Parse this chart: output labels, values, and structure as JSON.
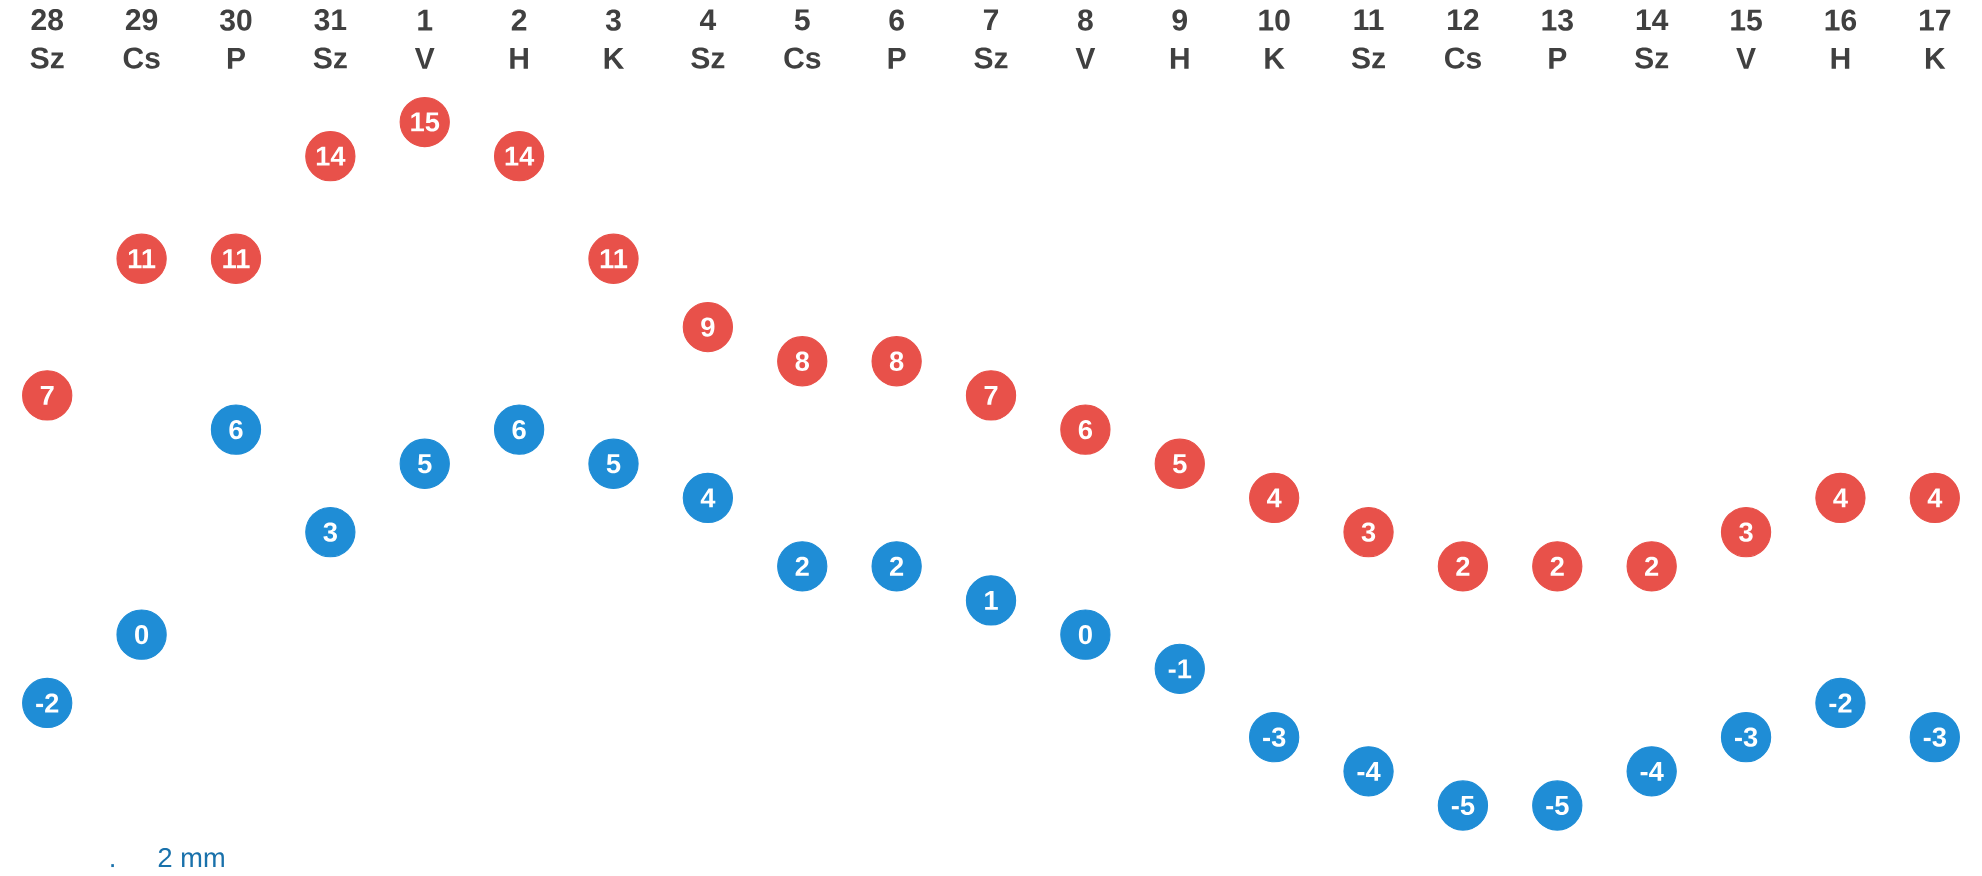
{
  "chart_data": {
    "type": "scatter",
    "categories": [
      "28 Sz",
      "29 Cs",
      "30 P",
      "31 Sz",
      "1 V",
      "2 H",
      "3 K",
      "4 Sz",
      "5 Cs",
      "6 P",
      "7 Sz",
      "8 V",
      "9 H",
      "10 K",
      "11 Sz",
      "12 Cs",
      "13 P",
      "14 Sz",
      "15 V",
      "16 H",
      "17 K"
    ],
    "series": [
      {
        "color": "#e8514a",
        "values": [
          7,
          11,
          11,
          14,
          15,
          14,
          11,
          9,
          8,
          8,
          7,
          6,
          5,
          4,
          3,
          2,
          2,
          2,
          3,
          4,
          4
        ]
      },
      {
        "color": "#1f8dd6",
        "values": [
          -2,
          0,
          6,
          3,
          5,
          6,
          5,
          4,
          2,
          2,
          1,
          0,
          -1,
          -3,
          -4,
          -5,
          -5,
          -4,
          -3,
          -2,
          -3
        ]
      }
    ],
    "marker": "circle",
    "data_labels": true,
    "annotations": [
      ".",
      "2 mm"
    ]
  }
}
